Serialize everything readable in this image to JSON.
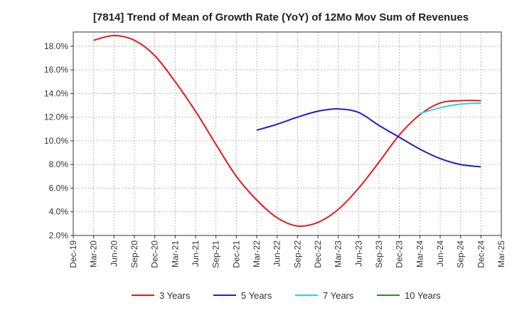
{
  "chart_data": {
    "type": "line",
    "title": "[7814]  Trend of Mean of Growth Rate (YoY) of 12Mo Mov Sum of Revenues",
    "xlabel": "",
    "ylabel": "",
    "x_ticks": [
      "Dec-19",
      "Mar-20",
      "Jun-20",
      "Sep-20",
      "Dec-20",
      "Mar-21",
      "Jun-21",
      "Sep-21",
      "Dec-21",
      "Mar-22",
      "Jun-22",
      "Sep-22",
      "Dec-22",
      "Mar-23",
      "Jun-23",
      "Sep-23",
      "Dec-23",
      "Mar-24",
      "Jun-24",
      "Sep-24",
      "Dec-24",
      "Mar-25"
    ],
    "y_ticks": [
      "2.0%",
      "4.0%",
      "6.0%",
      "8.0%",
      "10.0%",
      "12.0%",
      "14.0%",
      "16.0%",
      "18.0%"
    ],
    "ylim": [
      2.0,
      19.2
    ],
    "grid": true,
    "legend_position": "bottom",
    "series": [
      {
        "name": "3 Years",
        "color": "#e31a1c",
        "values": [
          null,
          18.5,
          18.9,
          18.5,
          17.2,
          15.0,
          12.5,
          9.7,
          7.0,
          5.0,
          3.5,
          2.8,
          3.1,
          4.2,
          6.0,
          8.2,
          10.5,
          12.2,
          13.2,
          13.4,
          13.4,
          null
        ]
      },
      {
        "name": "5 Years",
        "color": "#1f1fc8",
        "values": [
          null,
          null,
          null,
          null,
          null,
          null,
          null,
          null,
          null,
          10.9,
          11.4,
          12.0,
          12.5,
          12.7,
          12.4,
          11.3,
          10.3,
          9.3,
          8.5,
          8.0,
          7.8,
          null
        ]
      },
      {
        "name": "7 Years",
        "color": "#22d8e8",
        "values": [
          null,
          null,
          null,
          null,
          null,
          null,
          null,
          null,
          null,
          null,
          null,
          null,
          null,
          null,
          null,
          null,
          null,
          12.3,
          12.8,
          13.1,
          13.2,
          null
        ]
      },
      {
        "name": "10 Years",
        "color": "#2a8a2a",
        "values": [
          null,
          null,
          null,
          null,
          null,
          null,
          null,
          null,
          null,
          null,
          null,
          null,
          null,
          null,
          null,
          null,
          null,
          null,
          null,
          null,
          null,
          null
        ]
      }
    ]
  }
}
